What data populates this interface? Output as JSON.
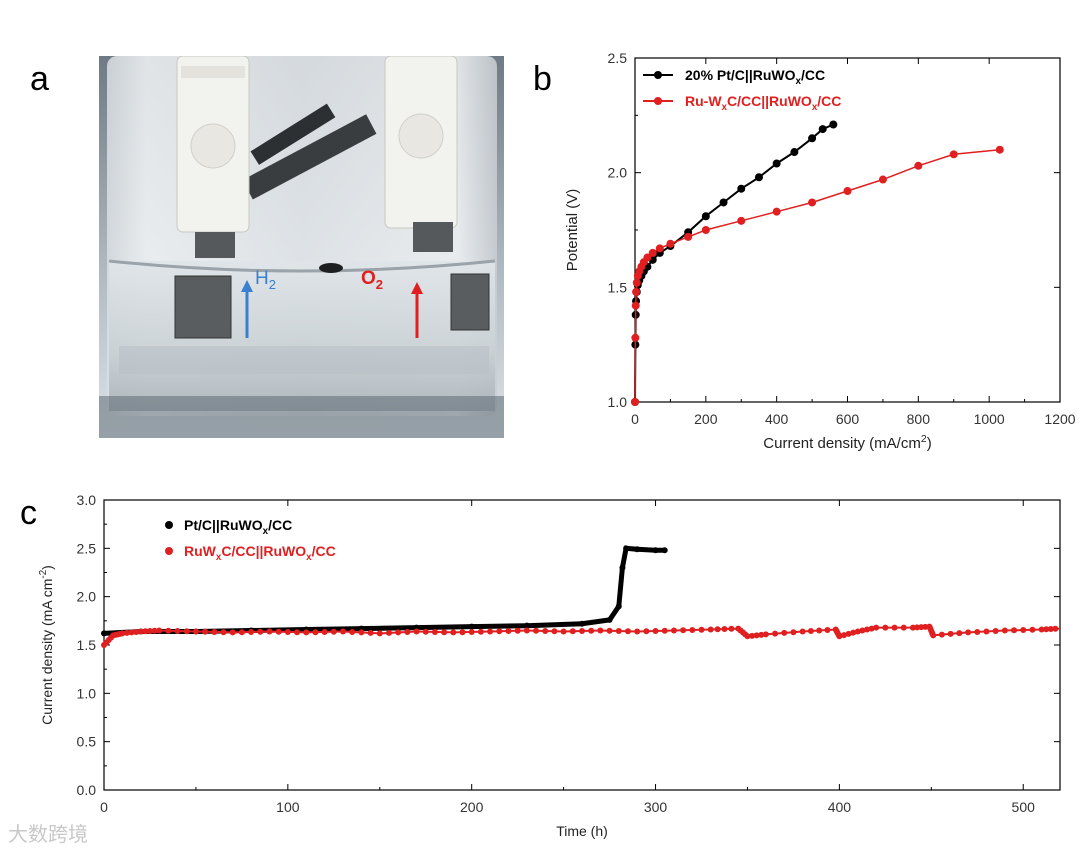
{
  "figure": {
    "panel_labels": [
      "a",
      "b",
      "c"
    ],
    "watermark": "大数跨境"
  },
  "photo": {
    "description_labels": {
      "h2": "H",
      "h2_sub": "2",
      "o2": "O",
      "o2_sub": "2"
    },
    "colors": {
      "h2": "#3a7fd0",
      "o2": "#e02020"
    }
  },
  "chart_data": [
    {
      "type": "line",
      "title": "",
      "xlabel": "Current density (mA/cm",
      "xlabel_sup": "2",
      "xlabel_end": ")",
      "ylabel": "Potential (V)",
      "xlim": [
        0,
        1200
      ],
      "ylim": [
        1.0,
        2.5
      ],
      "xticks": [
        0,
        200,
        400,
        600,
        800,
        1000,
        1200
      ],
      "yticks": [
        1.0,
        1.5,
        2.0,
        2.5
      ],
      "xtick_labels": [
        "0",
        "200",
        "400",
        "600",
        "800",
        "1000",
        "1200"
      ],
      "ytick_labels": [
        "1.0",
        "1.5",
        "2.0",
        "2.5"
      ],
      "legend": [
        {
          "prefix": "20% Pt/C||RuWO",
          "sub": "x",
          "suffix": "/CC",
          "color": "#000000"
        },
        {
          "prefix": "Ru-W",
          "sub": "x",
          "mid": "C/CC||RuWO",
          "sub2": "x",
          "suffix": "/CC",
          "color": "#e02020"
        }
      ],
      "series": [
        {
          "name": "20% Pt/C||RuWOx/CC",
          "color": "#000000",
          "x": [
            0,
            1,
            2,
            3,
            5,
            8,
            12,
            18,
            25,
            35,
            50,
            70,
            100,
            150,
            200,
            250,
            300,
            350,
            400,
            450,
            500,
            530,
            560
          ],
          "y": [
            1.0,
            1.25,
            1.38,
            1.44,
            1.48,
            1.51,
            1.53,
            1.55,
            1.57,
            1.59,
            1.62,
            1.65,
            1.68,
            1.74,
            1.81,
            1.87,
            1.93,
            1.98,
            2.04,
            2.09,
            2.15,
            2.19,
            2.21
          ]
        },
        {
          "name": "Ru-WxC/CC||RuWOx/CC",
          "color": "#e02020",
          "x": [
            0,
            1,
            2,
            3,
            5,
            8,
            12,
            18,
            25,
            35,
            50,
            70,
            100,
            150,
            200,
            300,
            400,
            500,
            600,
            700,
            800,
            900,
            1030
          ],
          "y": [
            1.0,
            1.28,
            1.42,
            1.48,
            1.52,
            1.55,
            1.57,
            1.59,
            1.61,
            1.63,
            1.65,
            1.67,
            1.69,
            1.72,
            1.75,
            1.79,
            1.83,
            1.87,
            1.92,
            1.97,
            2.03,
            2.08,
            2.1
          ]
        }
      ]
    },
    {
      "type": "line",
      "title": "",
      "xlabel": "Time (h)",
      "ylabel": "Current density (mA cm",
      "ylabel_sup": "-2",
      "ylabel_end": ")",
      "xlim": [
        0,
        520
      ],
      "ylim": [
        0.0,
        3.0
      ],
      "xticks": [
        0,
        100,
        200,
        300,
        400,
        500
      ],
      "yticks": [
        0.0,
        0.5,
        1.0,
        1.5,
        2.0,
        2.5,
        3.0
      ],
      "xtick_labels": [
        "0",
        "100",
        "200",
        "300",
        "400",
        "500"
      ],
      "ytick_labels": [
        "0.0",
        "0.5",
        "1.0",
        "1.5",
        "2.0",
        "2.5",
        "3.0"
      ],
      "legend": [
        {
          "prefix": "Pt/C||RuWO",
          "sub": "x",
          "suffix": "/CC",
          "color": "#000000"
        },
        {
          "prefix": "RuW",
          "sub": "x",
          "mid": "C/CC||RuWO",
          "sub2": "x",
          "suffix": "/CC",
          "color": "#e02020"
        }
      ],
      "series": [
        {
          "name": "Pt/C||RuWOx/CC",
          "color": "#000000",
          "x": [
            0,
            20,
            50,
            80,
            110,
            140,
            170,
            200,
            230,
            260,
            275,
            280,
            282,
            284,
            290,
            300,
            305
          ],
          "y": [
            1.62,
            1.64,
            1.64,
            1.65,
            1.66,
            1.67,
            1.68,
            1.69,
            1.7,
            1.72,
            1.76,
            1.9,
            2.3,
            2.5,
            2.49,
            2.48,
            2.48
          ],
          "markers": false
        },
        {
          "name": "RuWxC/CC||RuWOx/CC",
          "color": "#e02020",
          "x": [
            0,
            5,
            10,
            20,
            30,
            50,
            70,
            90,
            110,
            130,
            150,
            170,
            190,
            210,
            230,
            250,
            270,
            290,
            310,
            330,
            345,
            350,
            360,
            380,
            398,
            400,
            410,
            420,
            440,
            449,
            451,
            470,
            490,
            510,
            520
          ],
          "y": [
            1.5,
            1.6,
            1.62,
            1.64,
            1.65,
            1.64,
            1.63,
            1.64,
            1.63,
            1.64,
            1.62,
            1.64,
            1.63,
            1.64,
            1.65,
            1.64,
            1.65,
            1.64,
            1.65,
            1.66,
            1.67,
            1.59,
            1.61,
            1.64,
            1.66,
            1.59,
            1.64,
            1.68,
            1.68,
            1.69,
            1.6,
            1.63,
            1.65,
            1.66,
            1.67
          ],
          "markers": true
        }
      ]
    }
  ]
}
